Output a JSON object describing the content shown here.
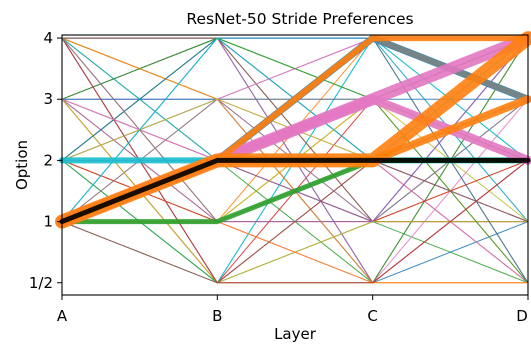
{
  "chart_data": {
    "type": "line",
    "title": "ResNet-50 Stride Preferences",
    "xlabel": "Layer",
    "ylabel": "Option",
    "categories": [
      "A",
      "B",
      "C",
      "D"
    ],
    "y_ticks": [
      {
        "label": "1/2",
        "value": 0
      },
      {
        "label": "1",
        "value": 1
      },
      {
        "label": "2",
        "value": 2
      },
      {
        "label": "3",
        "value": 3
      },
      {
        "label": "4",
        "value": 4
      }
    ],
    "ylim": [
      -0.2,
      4.05
    ],
    "grid": false,
    "background_lines": {
      "comment_free_colors": [
        "#1f77b4",
        "#ff7f0e",
        "#2ca02c",
        "#d62728",
        "#9467bd",
        "#8c564b",
        "#e377c2",
        "#7f7f7f",
        "#bcbd22",
        "#17becf"
      ],
      "paths": [
        [
          4,
          4,
          4,
          4
        ],
        [
          4,
          1,
          3,
          2
        ],
        [
          4,
          2,
          1,
          0
        ],
        [
          4,
          0,
          2,
          3
        ],
        [
          4,
          3,
          4,
          1
        ],
        [
          4,
          4,
          2,
          0
        ],
        [
          4,
          1,
          0,
          3
        ],
        [
          4,
          2,
          3,
          4
        ],
        [
          4,
          3,
          1,
          2
        ],
        [
          4,
          0,
          4,
          1
        ],
        [
          3,
          4,
          2,
          1
        ],
        [
          3,
          1,
          4,
          0
        ],
        [
          3,
          2,
          0,
          2
        ],
        [
          3,
          0,
          3,
          4
        ],
        [
          3,
          3,
          1,
          3
        ],
        [
          3,
          4,
          0,
          4
        ],
        [
          3,
          2,
          2,
          1
        ],
        [
          2,
          4,
          1,
          3
        ],
        [
          2,
          1,
          2,
          4
        ],
        [
          2,
          0,
          4,
          2
        ],
        [
          2,
          3,
          0,
          1
        ],
        [
          2,
          2,
          3,
          0
        ],
        [
          2,
          4,
          3,
          2
        ],
        [
          2,
          1,
          1,
          1
        ],
        [
          1,
          4,
          0,
          2
        ],
        [
          1,
          2,
          4,
          3
        ],
        [
          1,
          3,
          2,
          0
        ],
        [
          1,
          0,
          1,
          4
        ],
        [
          1,
          1,
          3,
          1
        ],
        [
          1,
          4,
          4,
          3
        ],
        [
          3,
          3,
          3,
          3
        ],
        [
          4,
          3,
          0,
          0
        ],
        [
          2,
          0,
          0,
          4
        ],
        [
          1,
          2,
          1,
          2
        ],
        [
          3,
          1,
          1,
          4
        ],
        [
          4,
          4,
          1,
          1
        ],
        [
          2,
          3,
          4,
          4
        ],
        [
          1,
          3,
          3,
          4
        ],
        [
          3,
          0,
          1,
          1
        ],
        [
          4,
          2,
          4,
          2
        ],
        [
          2,
          4,
          4,
          0
        ],
        [
          1,
          1,
          0,
          0
        ],
        [
          3,
          4,
          3,
          0
        ],
        [
          4,
          0,
          0,
          2
        ],
        [
          2,
          2,
          1,
          4
        ],
        [
          1,
          0,
          2,
          1
        ],
        [
          3,
          2,
          4,
          4
        ],
        [
          4,
          1,
          2,
          3
        ],
        [
          2,
          3,
          2,
          2
        ],
        [
          1,
          4,
          2,
          4
        ]
      ]
    },
    "series": [
      {
        "color": "#17becf",
        "width": 6,
        "values": [
          2,
          2,
          2,
          2
        ]
      },
      {
        "color": "#2ca02c",
        "width": 5,
        "values": [
          1,
          1,
          2,
          2
        ]
      },
      {
        "color": "#1f77b4",
        "width": 7,
        "values": [
          1,
          2,
          4,
          3
        ]
      },
      {
        "color": "#17becf",
        "width": 6,
        "values": [
          1,
          2,
          4,
          3
        ]
      },
      {
        "color": "#7f7f7f",
        "width": 6,
        "values": [
          1,
          2,
          4,
          3
        ]
      },
      {
        "color": "#e377c2",
        "width": 12,
        "values": [
          1,
          2,
          3,
          4
        ]
      },
      {
        "color": "#e377c2",
        "width": 9,
        "values": [
          1,
          2,
          3,
          2
        ]
      },
      {
        "color": "#ff7f0e",
        "width": 14,
        "values": [
          1,
          2,
          2,
          4
        ]
      },
      {
        "color": "#ff7f0e",
        "width": 8,
        "values": [
          1,
          2,
          2,
          3
        ]
      },
      {
        "color": "#ff7f0e",
        "width": 6,
        "values": [
          1,
          2,
          4,
          4
        ]
      },
      {
        "color": "#000000",
        "width": 5,
        "values": [
          1,
          2,
          2,
          2
        ]
      }
    ]
  }
}
